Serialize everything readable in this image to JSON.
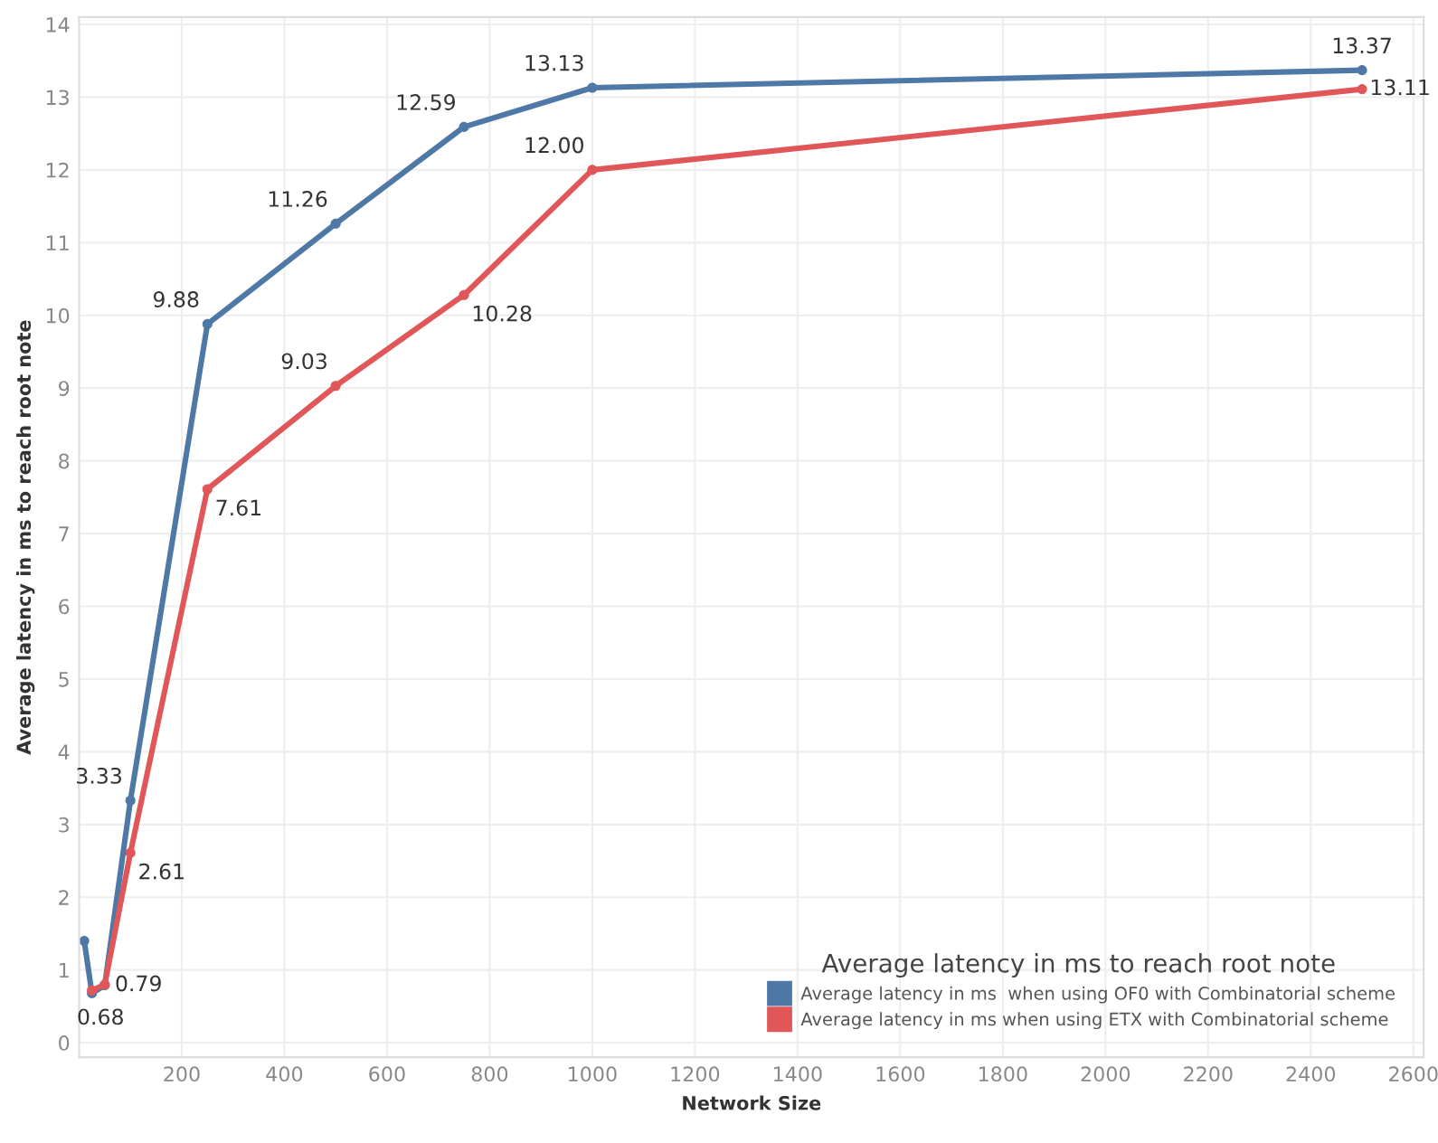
{
  "chart_data": {
    "type": "line",
    "xlabel": "Network Size",
    "ylabel": "Average latency in ms to reach root note",
    "legend_title": "Average latency in ms to reach root note",
    "xlim": [
      0,
      2620
    ],
    "ylim": [
      -0.2,
      14.1
    ],
    "xticks": [
      200,
      400,
      600,
      800,
      1000,
      1200,
      1400,
      1600,
      1800,
      2000,
      2200,
      2400,
      2600
    ],
    "yticks": [
      0,
      1,
      2,
      3,
      4,
      5,
      6,
      7,
      8,
      9,
      10,
      11,
      12,
      13,
      14
    ],
    "grid": true,
    "legend": "bottom right",
    "marker": "circle",
    "line_style": "solid",
    "series": [
      {
        "name": "Average latency in ms  when using OF0 with Combinatorial scheme",
        "color": "#4e79a7",
        "x": [
          10,
          25,
          50,
          100,
          250,
          500,
          750,
          1000,
          2500
        ],
        "values": [
          1.4,
          0.68,
          0.79,
          3.33,
          9.88,
          11.26,
          12.59,
          13.13,
          13.37
        ],
        "value_labels": [
          null,
          "0.68",
          "0.79",
          "3.33",
          "9.88",
          "11.26",
          "12.59",
          "13.13",
          "13.37"
        ]
      },
      {
        "name": "Average latency in ms when using ETX with Combinatorial scheme",
        "color": "#e15759",
        "x": [
          25,
          50,
          100,
          250,
          500,
          750,
          1000,
          2500
        ],
        "values": [
          0.72,
          0.8,
          2.61,
          7.61,
          9.03,
          10.28,
          12.0,
          13.11
        ],
        "value_labels": [
          null,
          null,
          "2.61",
          "7.61",
          "9.03",
          "10.28",
          "12.00",
          "13.11"
        ]
      }
    ]
  }
}
